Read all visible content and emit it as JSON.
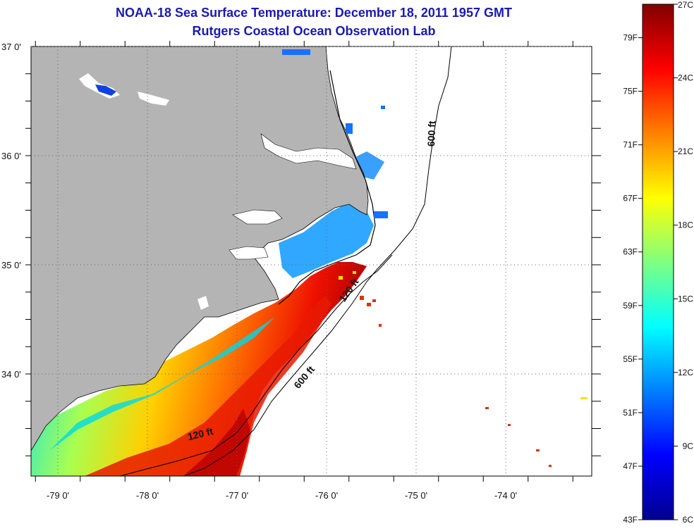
{
  "title": "NOAA-18 Sea Surface Temperature:  December 18, 2011 1957 GMT",
  "subtitle": "Rutgers Coastal Ocean Observation Lab",
  "lon_ticks": [
    {
      "value": -79,
      "label": "-79 0'"
    },
    {
      "value": -78,
      "label": "-78 0'"
    },
    {
      "value": -77,
      "label": "-77 0'"
    },
    {
      "value": -76,
      "label": "-76 0'"
    },
    {
      "value": -75,
      "label": "-75 0'"
    },
    {
      "value": -74,
      "label": "-74 0'"
    }
  ],
  "lat_ticks": [
    {
      "value": 37,
      "label": "37 0'"
    },
    {
      "value": 36,
      "label": "36 0'"
    },
    {
      "value": 35,
      "label": "35 0'"
    },
    {
      "value": 34,
      "label": "34 0'"
    }
  ],
  "isobath_labels": [
    {
      "label": "600 ft",
      "lon": -74.79,
      "lat": 36.2,
      "rotate": -88
    },
    {
      "label": "120 ft",
      "lon": -75.72,
      "lat": 34.75,
      "rotate": -55
    },
    {
      "label": "600 ft",
      "lon": -76.22,
      "lat": 33.95,
      "rotate": -50
    },
    {
      "label": "120 ft",
      "lon": -77.4,
      "lat": 33.42,
      "rotate": -14
    }
  ],
  "colorbar": {
    "fahrenheit_labels": [
      "79F",
      "75F",
      "71F",
      "67F",
      "63F",
      "59F",
      "55F",
      "51F",
      "47F",
      "43F"
    ],
    "celsius_labels": [
      "27C",
      "24C",
      "21C",
      "18C",
      "15C",
      "12C",
      "9C",
      "6C"
    ],
    "colors": [
      "#00008f",
      "#0000ff",
      "#0080ff",
      "#00ffff",
      "#80ff80",
      "#ffff00",
      "#ff8000",
      "#ff0000",
      "#800000"
    ]
  },
  "colors": {
    "land": "#b4b4b4",
    "title": "#1a1ab0"
  }
}
